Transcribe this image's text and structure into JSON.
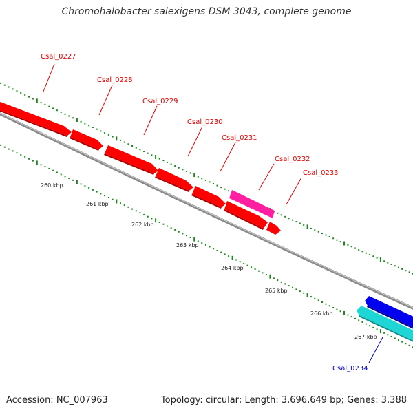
{
  "title": "Chromohalobacter salexigens DSM 3043, complete genome",
  "footer": {
    "accession": "Accession: NC_007963",
    "summary": "Topology: circular; Length: 3,696,649 bp; Genes: 3,388"
  },
  "colors": {
    "forward_gene": "#ff0000",
    "highlight_gene": "#ff1fa0",
    "reverse_gene_blue": "#0000ee",
    "reverse_gene_cyan": "#1fd6d6",
    "tick": "#1a8a1a",
    "backbone": "#8a8a8a",
    "label_red": "#e00000",
    "label_blue": "#0000cc"
  },
  "genes": [
    {
      "name": "Csal_0227",
      "label_color": "red"
    },
    {
      "name": "Csal_0228",
      "label_color": "red"
    },
    {
      "name": "Csal_0229",
      "label_color": "red"
    },
    {
      "name": "Csal_0230",
      "label_color": "red"
    },
    {
      "name": "Csal_0231",
      "label_color": "red"
    },
    {
      "name": "Csal_0232",
      "label_color": "red"
    },
    {
      "name": "Csal_0233",
      "label_color": "red"
    },
    {
      "name": "Csal_0234",
      "label_color": "blue"
    }
  ],
  "ticks": [
    "260 kbp",
    "261 kbp",
    "262 kbp",
    "263 kbp",
    "264 kbp",
    "265 kbp",
    "266 kbp",
    "267 kbp"
  ]
}
